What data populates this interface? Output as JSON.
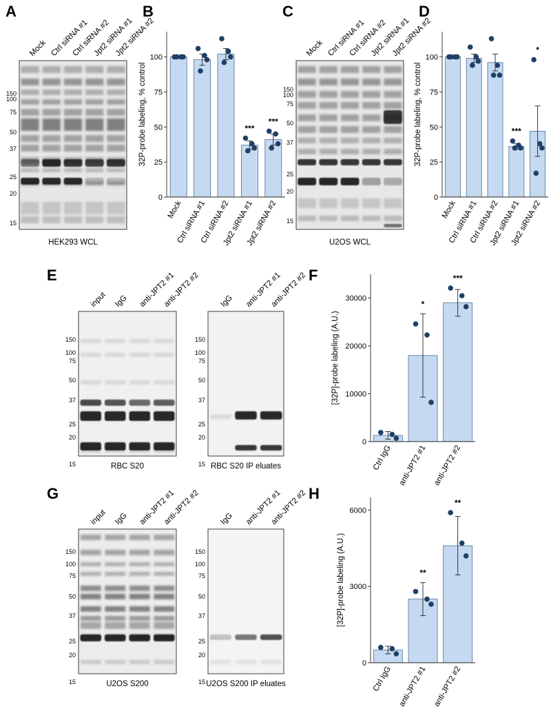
{
  "figure": {
    "panels": {
      "A": {
        "letter": "A",
        "lanes": [
          "Mock",
          "Ctrl siRNA #1",
          "Ctrl siRNA #2",
          "Jpt2 siRNA #1",
          "Jpt2 siRNA #2"
        ],
        "markers": [
          "150",
          "100",
          "75",
          "50",
          "37",
          "25",
          "20",
          "15"
        ],
        "caption": "HEK293 WCL"
      },
      "C": {
        "letter": "C",
        "lanes": [
          "Mock",
          "Ctrl siRNA #1",
          "Ctrl siRNA #2",
          "Jpt2 siRNA #1",
          "Jpt2 siRNA #2"
        ],
        "markers": [
          "150",
          "100",
          "75",
          "50",
          "37",
          "25",
          "20",
          "15"
        ],
        "caption": "U2OS WCL"
      },
      "E": {
        "letter": "E",
        "left": {
          "lanes": [
            "input",
            "IgG",
            "anti-JPT2 #1",
            "anti-JPT2 #2"
          ],
          "markers": [
            "150",
            "100",
            "75",
            "50",
            "37",
            "25",
            "20",
            "15"
          ],
          "caption": "RBC S20"
        },
        "right": {
          "lanes": [
            "IgG",
            "anti-JPT2 #1",
            "anti-JPT2 #2"
          ],
          "markers": [
            "150",
            "100",
            "75",
            "50",
            "37",
            "25",
            "20",
            "15"
          ],
          "caption": "RBC S20 IP eluates"
        }
      },
      "G": {
        "letter": "G",
        "left": {
          "lanes": [
            "input",
            "IgG",
            "anti-JPT2 #1",
            "anti-JPT2 #2"
          ],
          "markers": [
            "150",
            "100",
            "75",
            "50",
            "37",
            "25",
            "20",
            "15"
          ],
          "caption": "U2OS S200"
        },
        "right": {
          "lanes": [
            "IgG",
            "anti-JPT2 #1",
            "anti-JPT2 #2"
          ],
          "markers": [
            "150",
            "100",
            "75",
            "50",
            "37",
            "25",
            "20",
            "15"
          ],
          "caption": "U2OS S200 IP eluates"
        }
      }
    },
    "colors": {
      "bar_fill": "#c5daf0",
      "bar_stroke": "#4a6e96",
      "dot": "#1f3f66",
      "band": "#1a1a1a"
    }
  },
  "chart_data": [
    {
      "id": "B",
      "letter": "B",
      "type": "bar",
      "categories": [
        "Mock",
        "Ctrl siRNA #1",
        "Ctrl siRNA #2",
        "Jpt2 siRNA #1",
        "Jpt2 siRNA #2"
      ],
      "values": [
        100,
        98,
        102,
        37,
        41
      ],
      "errors": [
        0,
        4,
        4,
        3,
        4
      ],
      "points": [
        [
          100,
          100,
          100,
          100
        ],
        [
          106,
          101,
          98,
          90
        ],
        [
          113,
          104,
          100,
          96
        ],
        [
          42,
          38,
          35,
          33
        ],
        [
          47,
          45,
          38,
          35
        ]
      ],
      "significance": [
        "",
        "",
        "",
        "***",
        "***"
      ],
      "ylabel": "32P-probe labeling, % control",
      "yticks": [
        0,
        25,
        50,
        75,
        100
      ],
      "ylim": [
        0,
        118
      ]
    },
    {
      "id": "D",
      "letter": "D",
      "type": "bar",
      "categories": [
        "Mock",
        "Ctrl siRNA #1",
        "Ctrl siRNA #2",
        "Jpt2 siRNA #1",
        "Jpt2 siRNA #2"
      ],
      "values": [
        100,
        99,
        96,
        36,
        47
      ],
      "errors": [
        0,
        3,
        6,
        2,
        18
      ],
      "points": [
        [
          100,
          100,
          100,
          100
        ],
        [
          107,
          100,
          97,
          94
        ],
        [
          113,
          94,
          87,
          87
        ],
        [
          40,
          37,
          35,
          35
        ],
        [
          98,
          38,
          35,
          17
        ]
      ],
      "significance": [
        "",
        "",
        "",
        "***",
        "*"
      ],
      "ylabel": "32P-probe labeling, % control",
      "yticks": [
        0,
        25,
        50,
        75,
        100
      ],
      "ylim": [
        0,
        118
      ]
    },
    {
      "id": "F",
      "letter": "F",
      "type": "bar",
      "categories": [
        "Ctrl IgG",
        "anti-JPT2 #1",
        "anti-JPT2 #2"
      ],
      "values": [
        1300,
        18000,
        29000
      ],
      "errors": [
        800,
        8700,
        2800
      ],
      "points": [
        [
          1900,
          1500,
          700
        ],
        [
          24600,
          22300,
          8200
        ],
        [
          32100,
          30500,
          28200
        ]
      ],
      "significance": [
        "",
        "*",
        "***"
      ],
      "ylabel": "[32P]-probe labeling (A.U.)",
      "yticks": [
        0,
        10000,
        20000,
        30000
      ],
      "ylim": [
        0,
        35000
      ]
    },
    {
      "id": "H",
      "letter": "H",
      "type": "bar",
      "categories": [
        "Ctrl IgG",
        "anti-JPT2 #1",
        "anti-JPT2 #2"
      ],
      "values": [
        500,
        2500,
        4600
      ],
      "errors": [
        150,
        650,
        1150
      ],
      "points": [
        [
          600,
          550,
          350
        ],
        [
          2800,
          2500,
          2300
        ],
        [
          5900,
          4700,
          4200
        ]
      ],
      "significance": [
        "",
        "**",
        "**"
      ],
      "ylabel": "[32P]-probe labeling (A.U.)",
      "yticks": [
        0,
        3000,
        6000
      ],
      "ylim": [
        0,
        6500
      ]
    }
  ]
}
